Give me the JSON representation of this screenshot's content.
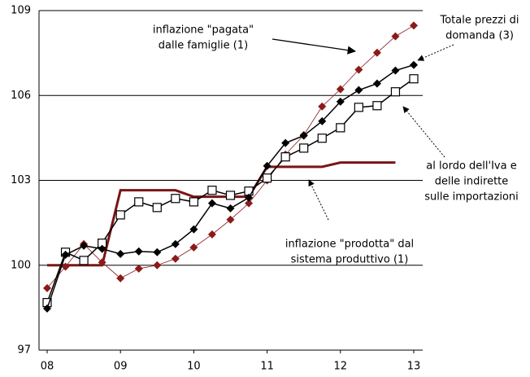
{
  "chart_data": {
    "type": "line",
    "x": [
      2008,
      2008.25,
      2008.5,
      2008.75,
      2009,
      2009.25,
      2009.5,
      2009.75,
      2010,
      2010.25,
      2010.5,
      2010.75,
      2011,
      2011.25,
      2011.5,
      2011.75,
      2012,
      2012.25,
      2012.5,
      2012.75,
      2013
    ],
    "series": [
      {
        "color": "#8b1a1a",
        "marker": "diamond",
        "values": [
          99.19,
          99.95,
          100.75,
          100.1,
          99.54,
          99.88,
          100.0,
          100.23,
          100.63,
          101.09,
          101.61,
          102.19,
          103.0,
          103.91,
          104.6,
          105.61,
          106.22,
          106.91,
          107.51,
          108.09,
          108.47
        ]
      },
      {
        "color": "#000000",
        "marker": "diamond",
        "values": [
          98.47,
          100.37,
          100.69,
          100.58,
          100.4,
          100.49,
          100.46,
          100.75,
          101.27,
          102.19,
          102.01,
          102.39,
          103.51,
          104.32,
          104.58,
          105.09,
          105.78,
          106.19,
          106.42,
          106.88,
          107.08
        ]
      },
      {
        "color": "#000000",
        "marker": "square",
        "values": [
          98.68,
          100.46,
          100.17,
          100.78,
          101.78,
          102.24,
          102.04,
          102.36,
          102.24,
          102.65,
          102.47,
          102.62,
          103.08,
          103.83,
          104.14,
          104.49,
          104.86,
          105.58,
          105.64,
          106.13,
          106.59
        ]
      },
      {
        "color": "#7b1515",
        "marker": "none",
        "values": [
          100,
          100,
          100,
          100,
          102.65,
          102.65,
          102.65,
          102.65,
          102.42,
          102.42,
          102.42,
          102.42,
          103.48,
          103.48,
          103.48,
          103.48,
          103.63,
          103.63,
          103.63,
          103.63,
          null
        ]
      }
    ],
    "xlim": [
      2008,
      2013
    ],
    "xticks": [
      {
        "value": 2008,
        "label": "08"
      },
      {
        "value": 2009,
        "label": "09"
      },
      {
        "value": 2010,
        "label": "10"
      },
      {
        "value": 2011,
        "label": "11"
      },
      {
        "value": 2012,
        "label": "12"
      },
      {
        "value": 2013,
        "label": "13"
      }
    ],
    "ylim": [
      97,
      109
    ],
    "yticks": [
      97,
      100,
      103,
      106,
      109
    ],
    "grid": true,
    "annotations": [
      {
        "lines": [
          "inflazione \"pagata\"",
          "dalle famiglie (1)"
        ]
      },
      {
        "lines": [
          "Totale prezzi di",
          "domanda (3)"
        ]
      },
      {
        "lines": [
          "al lordo dell'Iva e",
          "delle indirette",
          "sulle importazioni"
        ]
      },
      {
        "lines": [
          "inflazione \"prodotta\" dal",
          "sistema produttivo (1)"
        ]
      }
    ]
  }
}
